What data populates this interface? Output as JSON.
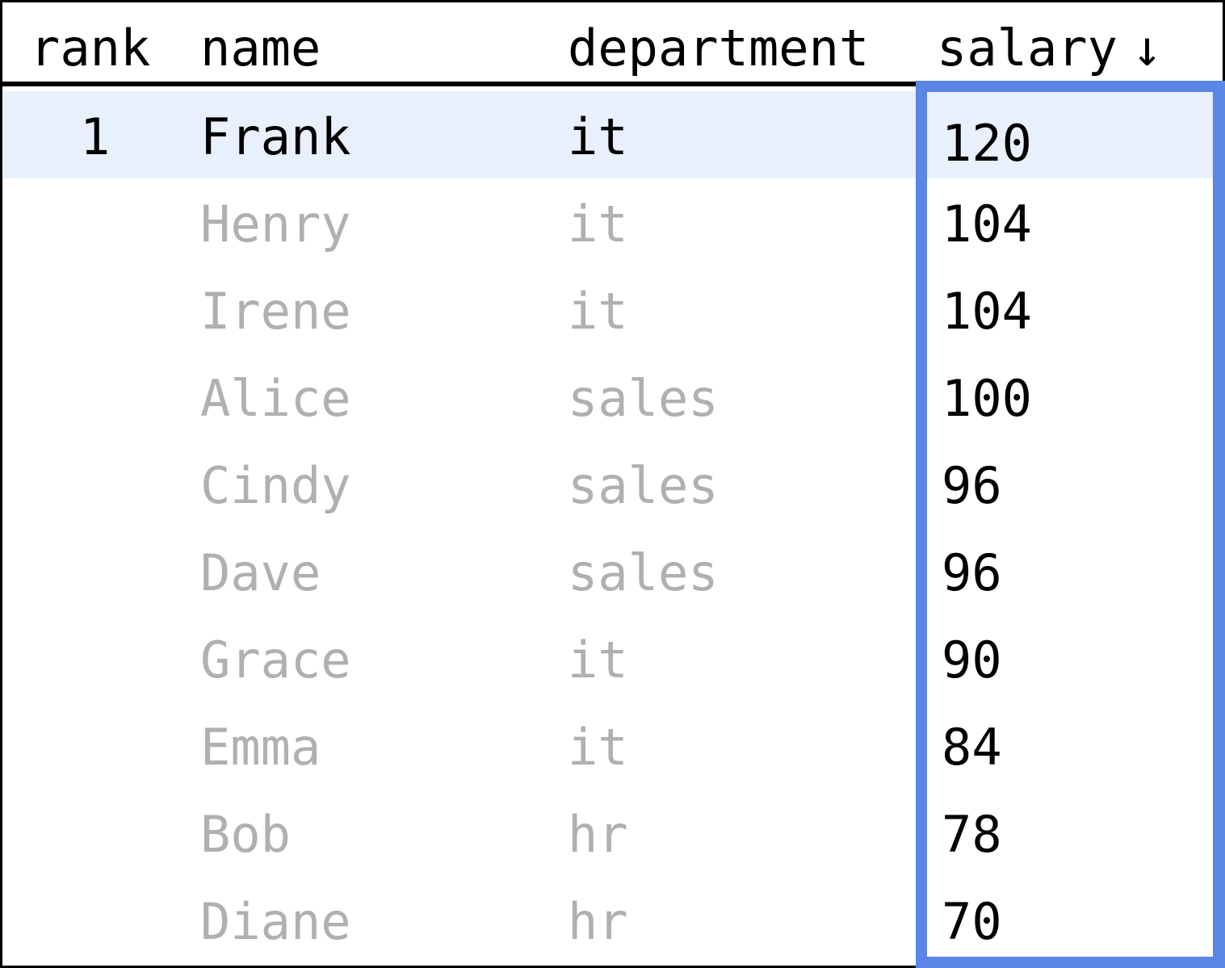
{
  "table": {
    "columns": {
      "rank": "rank",
      "name": "name",
      "department": "department",
      "salary": "salary"
    },
    "sort_indicator": "↓",
    "sorted_column": "salary",
    "sort_direction": "descending",
    "highlight_color": "#5b86e6",
    "selected_row_color": "#e8f0fc",
    "rows": [
      {
        "rank": "1",
        "name": "Frank",
        "department": "it",
        "salary": "120"
      },
      {
        "rank": "",
        "name": "Henry",
        "department": "it",
        "salary": "104"
      },
      {
        "rank": "",
        "name": "Irene",
        "department": "it",
        "salary": "104"
      },
      {
        "rank": "",
        "name": "Alice",
        "department": "sales",
        "salary": "100"
      },
      {
        "rank": "",
        "name": "Cindy",
        "department": "sales",
        "salary": "96"
      },
      {
        "rank": "",
        "name": "Dave",
        "department": "sales",
        "salary": "96"
      },
      {
        "rank": "",
        "name": "Grace",
        "department": "it",
        "salary": "90"
      },
      {
        "rank": "",
        "name": "Emma",
        "department": "it",
        "salary": "84"
      },
      {
        "rank": "",
        "name": "Bob",
        "department": "hr",
        "salary": "78"
      },
      {
        "rank": "",
        "name": "Diane",
        "department": "hr",
        "salary": "70"
      }
    ]
  }
}
